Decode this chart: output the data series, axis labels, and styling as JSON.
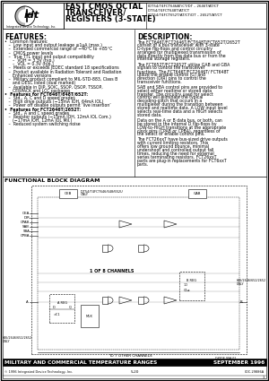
{
  "title_line1": "FAST CMOS OCTAL",
  "title_line2": "TRANSCEIVER/",
  "title_line3": "REGISTERS (3-STATE)",
  "part1": "IDT54/74FCT646AT/CT/DT – 2646T/AT/CT",
  "part2": "IDT54/74FCT648T/AT/CT",
  "part3": "IDT54/74FCT652T/AT/CT/DT – 2652T/AT/CT",
  "feat_title": "FEATURES:",
  "feat_lines": [
    "•  Common features:",
    "   –  Low input and output leakage ≤1μA (max.)",
    "   –  Extended commercial range of −40°C to +85°C",
    "   –  CMOS power levels",
    "   –  True TTL input and output compatibility",
    "      –  VOH = 3.3V (typ.)",
    "      –  VOL = 0.3V (typ.)",
    "   –  Meets or exceeds JEDEC standard 18 specifications",
    "   –  Product available in Radiation Tolerant and Radiation",
    "      Enhanced versions",
    "   –  Military product compliant to MIL-STD-883, Class B",
    "      and DESC listed (dual marked)",
    "   –  Available in DIP, SOIC, SSOP, QSOP, TSSOP,",
    "      CERPACK and LCC packages",
    "•  Features for FCT646T/648T/652T:",
    "   –  Std., A, C and D speed grades",
    "   –  High drive outputs (−15mA IOH, 64mA IOL)",
    "   –  Power off disable outputs permit ‘live insertion’",
    "•  Features for FCT2646T/2652T:",
    "   –  Std., A and C speed grades",
    "   –  Resistor outputs (−15mA IOH, 12mA IOL Com.)",
    "      (−17mA IOH, 12mA IOL Mil.)",
    "   –  Reduced system switching noise"
  ],
  "desc_title": "DESCRIPTION:",
  "desc_paras": [
    "   The FCT646T/FCT2646T/FCT648T/FCT652T/2652T consist of a bus transceiver with 3-state D-type flip-flops and control circuitry arranged for multiplexed transmission of data directly from the data bus or from the internal storage registers.",
    "   The FCT652T/FCT2652T utilize GAB and GBA signals to control the transceiver functions. The FCT646T/FCT2646T/ FCT648T utilize the enable control (G) and direction (DIR) pins to control the transceiver functions.",
    "   SAB and SBA control pins are provided to select either realtime or stored data transfer. The circuitry used for select control will eliminate the typical decoding-glitch that occurs in a multiplexer during the transition between stored and realtime data. A LOW input level selects real-time data and a HIGH selects stored data.",
    "   Data on the A or B data bus, or both, can be stored in the internal D flip-flops by LOW-to-HIGH transitions at the appropriate clock pins (CPAB or CPBA), regardless of the select or enable control pins.",
    "   The FCT26xxT have bus-sized drive outputs with current limiting resistors. This offers low ground bounce, minimal undershoot and controlled output fall times, reducing the need for external series terminating resistors. FCT26xxT parts are plug-in replacements for FCT6xxT parts."
  ],
  "block_title": "FUNCTIONAL BLOCK DIAGRAM",
  "footer_bar": "MILITARY AND COMMERCIAL TEMPERATURE RANGES",
  "footer_date": "SEPTEMBER 1996",
  "footer_copy": "© 1996 Integrated Device Technology, Inc.",
  "footer_page": "5-20",
  "footer_doc": "IIDC-29886A"
}
